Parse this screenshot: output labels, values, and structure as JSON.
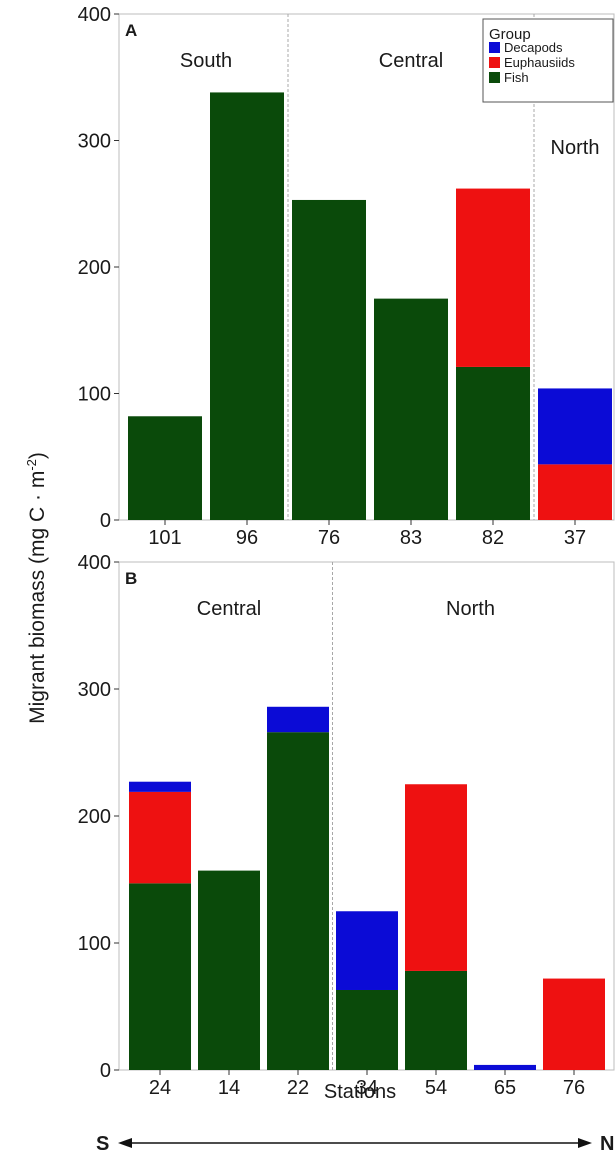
{
  "ylabel_main": "Migrant biomass (mg C · m",
  "ylabel_sup": "-2",
  "ylabel_close": ")",
  "xlabel": "Stations",
  "direction": {
    "left": "S",
    "right": "N"
  },
  "colors": {
    "Decapods": "#0b0bd6",
    "Euphausiids": "#ee1111",
    "Fish": "#0a4a0a"
  },
  "legend": {
    "title": "Group",
    "entries": [
      "Decapods",
      "Euphausiids",
      "Fish"
    ]
  },
  "chart_data": [
    {
      "type": "bar",
      "stacked": true,
      "panel_label": "A",
      "categories": [
        "101",
        "96",
        "76",
        "83",
        "82",
        "37"
      ],
      "series": [
        {
          "name": "Fish",
          "values": [
            82,
            338,
            253,
            175,
            121,
            0
          ]
        },
        {
          "name": "Euphausiids",
          "values": [
            0,
            0,
            0,
            0,
            141,
            44
          ]
        },
        {
          "name": "Decapods",
          "values": [
            0,
            0,
            0,
            0,
            0,
            60
          ]
        }
      ],
      "regions": [
        {
          "label": "South",
          "from": 0,
          "to": 1
        },
        {
          "label": "Central",
          "from": 2,
          "to": 4
        },
        {
          "label": "North",
          "from": 5,
          "to": 5
        }
      ],
      "ylim": [
        0,
        400
      ],
      "yticks": [
        0,
        100,
        200,
        300,
        400
      ],
      "xlabel": "",
      "legend_position": "top-right"
    },
    {
      "type": "bar",
      "stacked": true,
      "panel_label": "B",
      "categories": [
        "24",
        "14",
        "22",
        "34",
        "54",
        "65",
        "76"
      ],
      "series": [
        {
          "name": "Fish",
          "values": [
            147,
            157,
            266,
            63,
            78,
            0,
            0
          ]
        },
        {
          "name": "Euphausiids",
          "values": [
            72,
            0,
            0,
            0,
            147,
            0,
            72
          ]
        },
        {
          "name": "Decapods",
          "values": [
            8,
            0,
            20,
            62,
            0,
            4,
            0
          ]
        }
      ],
      "regions": [
        {
          "label": "Central",
          "from": 0,
          "to": 2
        },
        {
          "label": "North",
          "from": 3,
          "to": 6
        }
      ],
      "ylim": [
        0,
        400
      ],
      "yticks": [
        0,
        100,
        200,
        300,
        400
      ],
      "xlabel": "Stations"
    }
  ]
}
